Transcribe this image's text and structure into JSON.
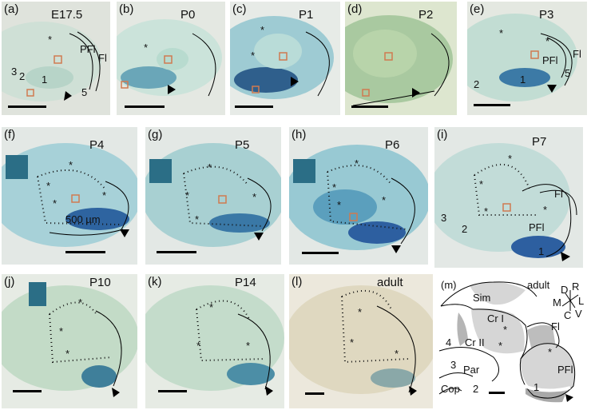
{
  "panels": [
    {
      "label": "(a)",
      "stage": "E17.5"
    },
    {
      "label": "(b)",
      "stage": "P0"
    },
    {
      "label": "(c)",
      "stage": "P1"
    },
    {
      "label": "(d)",
      "stage": "P2"
    },
    {
      "label": "(e)",
      "stage": "P3"
    },
    {
      "label": "(f)",
      "stage": "P4"
    },
    {
      "label": "(g)",
      "stage": "P5"
    },
    {
      "label": "(h)",
      "stage": "P6"
    },
    {
      "label": "(i)",
      "stage": "P7"
    },
    {
      "label": "(j)",
      "stage": "P10"
    },
    {
      "label": "(k)",
      "stage": "P14"
    },
    {
      "label": "(l)",
      "stage": "adult"
    },
    {
      "label": "(m)",
      "stage": "adult"
    }
  ],
  "annotations": {
    "a": {
      "fl": "Fl",
      "pfl": "PFl",
      "n3": "3",
      "n2": "2",
      "n1": "1",
      "n5": "5"
    },
    "e": {
      "fl": "Fl",
      "pfl": "PFl",
      "n2": "2",
      "n1": "1",
      "n5": "5"
    },
    "f": {
      "scale": "500 µm"
    },
    "i": {
      "fl": "Fl",
      "pfl": "PFl",
      "n3": "3",
      "n2": "2",
      "n1": "1"
    },
    "m": {
      "sim": "Sim",
      "cr1": "Cr I",
      "cr2": "Cr II",
      "n4": "4",
      "n3": "3",
      "par": "Par",
      "cop": "Cop",
      "n2": "2",
      "fl": "Fl",
      "pfl": "PFl",
      "n1": "1",
      "d": "D",
      "r": "R",
      "m": "M",
      "l": "L",
      "c": "C",
      "v": "V"
    }
  },
  "star_symbol": "*"
}
